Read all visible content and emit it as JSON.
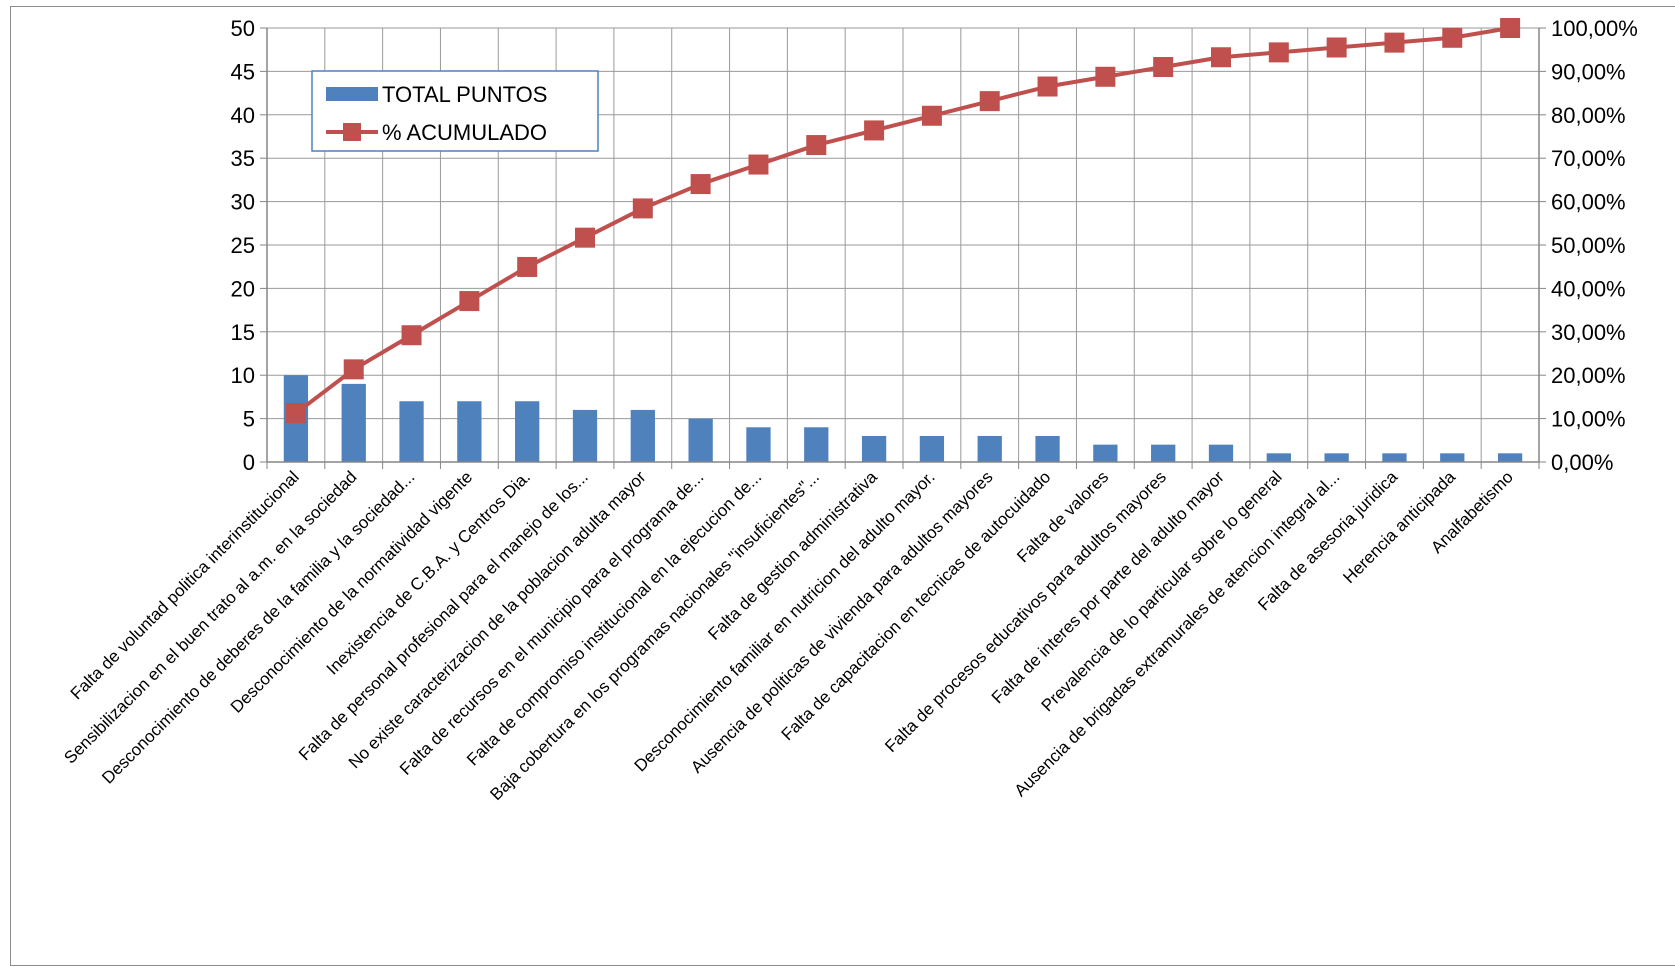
{
  "chart_data": {
    "type": "bar",
    "combo": "bar+line (Pareto)",
    "categories": [
      "Falta de voluntad politica interinstitucional",
      "Sensibilizacion en el buen trato al a.m. en la sociedad",
      "Desconocimiento de deberes de la familia y la sociedad...",
      "Desconocimiento de la normatividad vigente",
      "Inexistencia de C.B.A. y Centros Dia.",
      "Falta de personal profesional para el manejo de los...",
      "No existe caracterizacion de la poblacion adulta mayor",
      "Falta de recursos en el municipio para el programa de...",
      "Falta de compromiso institucional en la ejecucion de...",
      "Baja cobertura en los programas nacionales \"insuficientes\"...",
      "Falta de gestion administrativa",
      "Desconocimiento familiar en nutricion del adulto mayor.",
      "Ausencia de politicas de vivienda para adultos mayores",
      "Falta de capacitacion en tecnicas de autocuidado",
      "Falta de valores",
      "Falta de procesos educativos para adultos mayores",
      "Falta de interes por parte del adulto mayor",
      "Prevalencia de lo particular sobre lo general",
      "Ausencia de brigadas extramurales de atencion integral al...",
      "Falta de asesoria juridica",
      "Herencia anticipada",
      "Analfabetismo"
    ],
    "series": [
      {
        "name": "TOTAL PUNTOS",
        "axis": "left",
        "type": "bar",
        "color": "#4f81bd",
        "values": [
          10,
          9,
          7,
          7,
          7,
          6,
          6,
          5,
          4,
          4,
          3,
          3,
          3,
          3,
          2,
          2,
          2,
          1,
          1,
          1,
          1,
          1
        ]
      },
      {
        "name": "% ACUMULADO",
        "axis": "right",
        "type": "line",
        "color": "#c0504d",
        "marker": "square",
        "values": [
          11.24,
          21.35,
          29.21,
          37.08,
          44.94,
          51.69,
          58.43,
          64.04,
          68.54,
          73.03,
          76.4,
          79.78,
          83.15,
          86.52,
          88.76,
          91.01,
          93.26,
          94.38,
          95.51,
          96.63,
          97.75,
          100.0
        ]
      }
    ],
    "ylim": [
      0,
      50
    ],
    "yticks": [
      "0",
      "5",
      "10",
      "15",
      "20",
      "25",
      "30",
      "35",
      "40",
      "45",
      "50"
    ],
    "y2lim": [
      0,
      100
    ],
    "y2ticks": [
      "0,00%",
      "10,00%",
      "20,00%",
      "30,00%",
      "40,00%",
      "50,00%",
      "60,00%",
      "70,00%",
      "80,00%",
      "90,00%",
      "100,00%"
    ],
    "grid": true,
    "legend": {
      "position": "top-left",
      "entries": [
        "TOTAL PUNTOS",
        "% ACUMULADO"
      ]
    },
    "title": "",
    "xlabel": "",
    "ylabel": ""
  }
}
